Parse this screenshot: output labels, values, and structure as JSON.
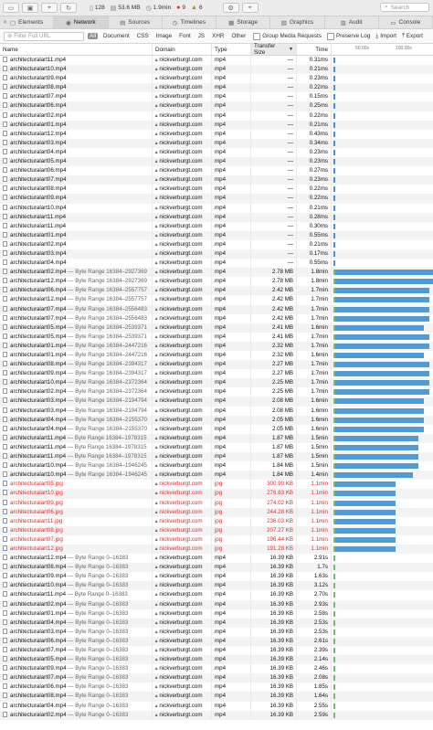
{
  "toolbar": {
    "count": "128",
    "size": "53.6 MB",
    "duration": "1.9min",
    "err": "9",
    "warn": "6",
    "search_placeholder": "Search"
  },
  "tabs": [
    {
      "label": "Elements",
      "icon": "elements-icon",
      "glyph": "▢",
      "active": false
    },
    {
      "label": "Network",
      "icon": "network-icon",
      "glyph": "◉",
      "active": true
    },
    {
      "label": "Sources",
      "icon": "sources-icon",
      "glyph": "▤",
      "active": false
    },
    {
      "label": "Timelines",
      "icon": "timelines-icon",
      "glyph": "◷",
      "active": false
    },
    {
      "label": "Storage",
      "icon": "storage-icon",
      "glyph": "▦",
      "active": false
    },
    {
      "label": "Graphics",
      "icon": "graphics-icon",
      "glyph": "▧",
      "active": false
    },
    {
      "label": "Audit",
      "icon": "audit-icon",
      "glyph": "▥",
      "active": false
    },
    {
      "label": "Console",
      "icon": "console-icon",
      "glyph": "▭",
      "active": false
    }
  ],
  "filter": {
    "placeholder": "Filter Full URL",
    "types": [
      "All",
      "Document",
      "CSS",
      "Image",
      "Font",
      "JS",
      "XHR",
      "Other"
    ],
    "group_media": "Group Media Requests",
    "preserve_log": "Preserve Log",
    "import": "Import",
    "export": "Export"
  },
  "columns": {
    "name": "Name",
    "domain": "Domain",
    "type": "Type",
    "size": "Transfer Size",
    "time": "Time",
    "tick1": "50.00s",
    "tick2": "100.00s"
  },
  "rows": [
    {
      "n": "architecturalart11.mp4",
      "r": "",
      "d": "nickverburgt.com",
      "t": "mp4",
      "s": "—",
      "tm": "0.31ms",
      "red": false,
      "bar": "s"
    },
    {
      "n": "architecturalart10.mp4",
      "r": "",
      "d": "nickverburgt.com",
      "t": "mp4",
      "s": "—",
      "tm": "0.21ms",
      "red": false,
      "bar": "s"
    },
    {
      "n": "architecturalart09.mp4",
      "r": "",
      "d": "nickverburgt.com",
      "t": "mp4",
      "s": "—",
      "tm": "0.23ms",
      "red": false,
      "bar": "s"
    },
    {
      "n": "architecturalart08.mp4",
      "r": "",
      "d": "nickverburgt.com",
      "t": "mp4",
      "s": "—",
      "tm": "0.22ms",
      "red": false,
      "bar": "s"
    },
    {
      "n": "architecturalart07.mp4",
      "r": "",
      "d": "nickverburgt.com",
      "t": "mp4",
      "s": "—",
      "tm": "0.15ms",
      "red": false,
      "bar": "s"
    },
    {
      "n": "architecturalart06.mp4",
      "r": "",
      "d": "nickverburgt.com",
      "t": "mp4",
      "s": "—",
      "tm": "0.25ms",
      "red": false,
      "bar": "s"
    },
    {
      "n": "architecturalart02.mp4",
      "r": "",
      "d": "nickverburgt.com",
      "t": "mp4",
      "s": "—",
      "tm": "0.22ms",
      "red": false,
      "bar": "s"
    },
    {
      "n": "architecturalart01.mp4",
      "r": "",
      "d": "nickverburgt.com",
      "t": "mp4",
      "s": "—",
      "tm": "0.21ms",
      "red": false,
      "bar": "s"
    },
    {
      "n": "architecturalart12.mp4",
      "r": "",
      "d": "nickverburgt.com",
      "t": "mp4",
      "s": "—",
      "tm": "0.43ms",
      "red": false,
      "bar": "s"
    },
    {
      "n": "architecturalart03.mp4",
      "r": "",
      "d": "nickverburgt.com",
      "t": "mp4",
      "s": "—",
      "tm": "0.34ms",
      "red": false,
      "bar": "s"
    },
    {
      "n": "architecturalart04.mp4",
      "r": "",
      "d": "nickverburgt.com",
      "t": "mp4",
      "s": "—",
      "tm": "0.23ms",
      "red": false,
      "bar": "s"
    },
    {
      "n": "architecturalart05.mp4",
      "r": "",
      "d": "nickverburgt.com",
      "t": "mp4",
      "s": "—",
      "tm": "0.23ms",
      "red": false,
      "bar": "s"
    },
    {
      "n": "architecturalart06.mp4",
      "r": "",
      "d": "nickverburgt.com",
      "t": "mp4",
      "s": "—",
      "tm": "0.27ms",
      "red": false,
      "bar": "s"
    },
    {
      "n": "architecturalart07.mp4",
      "r": "",
      "d": "nickverburgt.com",
      "t": "mp4",
      "s": "—",
      "tm": "0.23ms",
      "red": false,
      "bar": "s"
    },
    {
      "n": "architecturalart08.mp4",
      "r": "",
      "d": "nickverburgt.com",
      "t": "mp4",
      "s": "—",
      "tm": "0.22ms",
      "red": false,
      "bar": "s"
    },
    {
      "n": "architecturalart09.mp4",
      "r": "",
      "d": "nickverburgt.com",
      "t": "mp4",
      "s": "—",
      "tm": "0.22ms",
      "red": false,
      "bar": "s"
    },
    {
      "n": "architecturalart10.mp4",
      "r": "",
      "d": "nickverburgt.com",
      "t": "mp4",
      "s": "—",
      "tm": "0.21ms",
      "red": false,
      "bar": "s"
    },
    {
      "n": "architecturalart11.mp4",
      "r": "",
      "d": "nickverburgt.com",
      "t": "mp4",
      "s": "—",
      "tm": "0.28ms",
      "red": false,
      "bar": "s"
    },
    {
      "n": "architecturalart11.mp4",
      "r": "",
      "d": "nickverburgt.com",
      "t": "mp4",
      "s": "—",
      "tm": "0.30ms",
      "red": false,
      "bar": "s"
    },
    {
      "n": "architecturalart01.mp4",
      "r": "",
      "d": "nickverburgt.com",
      "t": "mp4",
      "s": "—",
      "tm": "0.55ms",
      "red": false,
      "bar": "s"
    },
    {
      "n": "architecturalart02.mp4",
      "r": "",
      "d": "nickverburgt.com",
      "t": "mp4",
      "s": "—",
      "tm": "0.21ms",
      "red": false,
      "bar": "s"
    },
    {
      "n": "architecturalart03.mp4",
      "r": "",
      "d": "nickverburgt.com",
      "t": "mp4",
      "s": "—",
      "tm": "0.17ms",
      "red": false,
      "bar": "s"
    },
    {
      "n": "architecturalart04.mp4",
      "r": "",
      "d": "nickverburgt.com",
      "t": "mp4",
      "s": "—",
      "tm": "0.55ms",
      "red": false,
      "bar": "s"
    },
    {
      "n": "architecturalart02.mp4",
      "r": " — Byte Range 16384–2927369",
      "d": "nickverburgt.com",
      "t": "mp4",
      "s": "2.78 MB",
      "tm": "1.8min",
      "red": false,
      "bar": "b",
      "w": 1.8
    },
    {
      "n": "architecturalart12.mp4",
      "r": " — Byte Range 16384–2927369",
      "d": "nickverburgt.com",
      "t": "mp4",
      "s": "2.78 MB",
      "tm": "1.8min",
      "red": false,
      "bar": "b",
      "w": 1.8
    },
    {
      "n": "architecturalart06.mp4",
      "r": " — Byte Range 16384–2557757",
      "d": "nickverburgt.com",
      "t": "mp4",
      "s": "2.42 MB",
      "tm": "1.7min",
      "red": false,
      "bar": "b",
      "w": 1.7
    },
    {
      "n": "architecturalart12.mp4",
      "r": " — Byte Range 16384–2557757",
      "d": "nickverburgt.com",
      "t": "mp4",
      "s": "2.42 MB",
      "tm": "1.7min",
      "red": false,
      "bar": "b",
      "w": 1.7
    },
    {
      "n": "architecturalart07.mp4",
      "r": " — Byte Range 16384–2556483",
      "d": "nickverburgt.com",
      "t": "mp4",
      "s": "2.42 MB",
      "tm": "1.7min",
      "red": false,
      "bar": "b",
      "w": 1.7
    },
    {
      "n": "architecturalart07.mp4",
      "r": " — Byte Range 16384–2556483",
      "d": "nickverburgt.com",
      "t": "mp4",
      "s": "2.42 MB",
      "tm": "1.7min",
      "red": false,
      "bar": "b",
      "w": 1.7
    },
    {
      "n": "architecturalart05.mp4",
      "r": " — Byte Range 16384–2539371",
      "d": "nickverburgt.com",
      "t": "mp4",
      "s": "2.41 MB",
      "tm": "1.6min",
      "red": false,
      "bar": "b",
      "w": 1.6
    },
    {
      "n": "architecturalart05.mp4",
      "r": " — Byte Range 16384–2539371",
      "d": "nickverburgt.com",
      "t": "mp4",
      "s": "2.41 MB",
      "tm": "1.7min",
      "red": false,
      "bar": "b",
      "w": 1.7
    },
    {
      "n": "architecturalart01.mp4",
      "r": " — Byte Range 16384–2447216",
      "d": "nickverburgt.com",
      "t": "mp4",
      "s": "2.32 MB",
      "tm": "1.7min",
      "red": false,
      "bar": "b",
      "w": 1.7
    },
    {
      "n": "architecturalart01.mp4",
      "r": " — Byte Range 16384–2447216",
      "d": "nickverburgt.com",
      "t": "mp4",
      "s": "2.32 MB",
      "tm": "1.6min",
      "red": false,
      "bar": "b",
      "w": 1.6
    },
    {
      "n": "architecturalart08.mp4",
      "r": " — Byte Range 16384–2394317",
      "d": "nickverburgt.com",
      "t": "mp4",
      "s": "2.27 MB",
      "tm": "1.7min",
      "red": false,
      "bar": "b",
      "w": 1.7
    },
    {
      "n": "architecturalart09.mp4",
      "r": " — Byte Range 16384–2394317",
      "d": "nickverburgt.com",
      "t": "mp4",
      "s": "2.27 MB",
      "tm": "1.7min",
      "red": false,
      "bar": "b",
      "w": 1.7
    },
    {
      "n": "architecturalart10.mp4",
      "r": " — Byte Range 16384–2372364",
      "d": "nickverburgt.com",
      "t": "mp4",
      "s": "2.25 MB",
      "tm": "1.7min",
      "red": false,
      "bar": "b",
      "w": 1.7
    },
    {
      "n": "architecturalart02.mp4",
      "r": " — Byte Range 16384–2372364",
      "d": "nickverburgt.com",
      "t": "mp4",
      "s": "2.25 MB",
      "tm": "1.7min",
      "red": false,
      "bar": "b",
      "w": 1.7
    },
    {
      "n": "architecturalart03.mp4",
      "r": " — Byte Range 16384–2194794",
      "d": "nickverburgt.com",
      "t": "mp4",
      "s": "2.08 MB",
      "tm": "1.6min",
      "red": false,
      "bar": "b",
      "w": 1.6
    },
    {
      "n": "architecturalart03.mp4",
      "r": " — Byte Range 16384–2194794",
      "d": "nickverburgt.com",
      "t": "mp4",
      "s": "2.08 MB",
      "tm": "1.6min",
      "red": false,
      "bar": "b",
      "w": 1.6
    },
    {
      "n": "architecturalart04.mp4",
      "r": " — Byte Range 16384–2155370",
      "d": "nickverburgt.com",
      "t": "mp4",
      "s": "2.05 MB",
      "tm": "1.6min",
      "red": false,
      "bar": "b",
      "w": 1.6
    },
    {
      "n": "architecturalart04.mp4",
      "r": " — Byte Range 16384–2155370",
      "d": "nickverburgt.com",
      "t": "mp4",
      "s": "2.05 MB",
      "tm": "1.6min",
      "red": false,
      "bar": "b",
      "w": 1.6
    },
    {
      "n": "architecturalart11.mp4",
      "r": " — Byte Range 16384–1978315",
      "d": "nickverburgt.com",
      "t": "mp4",
      "s": "1.87 MB",
      "tm": "1.5min",
      "red": false,
      "bar": "b",
      "w": 1.5
    },
    {
      "n": "architecturalart11.mp4",
      "r": " — Byte Range 16384–1978315",
      "d": "nickverburgt.com",
      "t": "mp4",
      "s": "1.87 MB",
      "tm": "1.5min",
      "red": false,
      "bar": "b",
      "w": 1.5
    },
    {
      "n": "architecturalart11.mp4",
      "r": " — Byte Range 16384–1978315",
      "d": "nickverburgt.com",
      "t": "mp4",
      "s": "1.87 MB",
      "tm": "1.5min",
      "red": false,
      "bar": "b",
      "w": 1.5
    },
    {
      "n": "architecturalart10.mp4",
      "r": " — Byte Range 16384–1946245",
      "d": "nickverburgt.com",
      "t": "mp4",
      "s": "1.84 MB",
      "tm": "1.5min",
      "red": false,
      "bar": "b",
      "w": 1.5
    },
    {
      "n": "architecturalart10.mp4",
      "r": " — Byte Range 16384–1946245",
      "d": "nickverburgt.com",
      "t": "mp4",
      "s": "1.84 MB",
      "tm": "1.4min",
      "red": false,
      "bar": "b",
      "w": 1.4
    },
    {
      "n": "architecturalart05.jpg",
      "r": "",
      "d": "nickverburgt.com",
      "t": "jpg",
      "s": "300.90 KB",
      "tm": "1.1min",
      "red": true,
      "bar": "b",
      "w": 1.1,
      "img": true
    },
    {
      "n": "architecturalart10.jpg",
      "r": "",
      "d": "nickverburgt.com",
      "t": "jpg",
      "s": "276.83 KB",
      "tm": "1.1min",
      "red": true,
      "bar": "b",
      "w": 1.1,
      "img": true
    },
    {
      "n": "architecturalart09.jpg",
      "r": "",
      "d": "nickverburgt.com",
      "t": "jpg",
      "s": "274.02 KB",
      "tm": "1.1min",
      "red": true,
      "bar": "b",
      "w": 1.1,
      "img": true
    },
    {
      "n": "architecturalart06.jpg",
      "r": "",
      "d": "nickverburgt.com",
      "t": "jpg",
      "s": "244.28 KB",
      "tm": "1.1min",
      "red": true,
      "bar": "b",
      "w": 1.1,
      "img": true
    },
    {
      "n": "architecturalart11.jpg",
      "r": "",
      "d": "nickverburgt.com",
      "t": "jpg",
      "s": "236.03 KB",
      "tm": "1.1min",
      "red": true,
      "bar": "b",
      "w": 1.1,
      "img": true
    },
    {
      "n": "architecturalart08.jpg",
      "r": "",
      "d": "nickverburgt.com",
      "t": "jpg",
      "s": "207.27 KB",
      "tm": "1.1min",
      "red": true,
      "bar": "b",
      "w": 1.1,
      "img": true
    },
    {
      "n": "architecturalart07.jpg",
      "r": "",
      "d": "nickverburgt.com",
      "t": "jpg",
      "s": "196.44 KB",
      "tm": "1.1min",
      "red": true,
      "bar": "b",
      "w": 1.1,
      "img": true
    },
    {
      "n": "architecturalart12.jpg",
      "r": "",
      "d": "nickverburgt.com",
      "t": "jpg",
      "s": "191.28 KB",
      "tm": "1.1min",
      "red": true,
      "bar": "b",
      "w": 1.1,
      "img": true
    },
    {
      "n": "architecturalart12.mp4",
      "r": " — Byte Range 0–16383",
      "d": "nickverburgt.com",
      "t": "mp4",
      "s": "16.39 KB",
      "tm": "2.91s",
      "red": false,
      "bar": "g"
    },
    {
      "n": "architecturalart08.mp4",
      "r": " — Byte Range 0–16383",
      "d": "nickverburgt.com",
      "t": "mp4",
      "s": "16.39 KB",
      "tm": "1.7s",
      "red": false,
      "bar": "g"
    },
    {
      "n": "architecturalart09.mp4",
      "r": " — Byte Range 0–16383",
      "d": "nickverburgt.com",
      "t": "mp4",
      "s": "16.39 KB",
      "tm": "1.63s",
      "red": false,
      "bar": "g"
    },
    {
      "n": "architecturalart10.mp4",
      "r": " — Byte Range 0–16383",
      "d": "nickverburgt.com",
      "t": "mp4",
      "s": "16.39 KB",
      "tm": "3.12s",
      "red": false,
      "bar": "g"
    },
    {
      "n": "architecturalart11.mp4",
      "r": " — Byte Range 0–16383",
      "d": "nickverburgt.com",
      "t": "mp4",
      "s": "16.39 KB",
      "tm": "2.70s",
      "red": false,
      "bar": "g"
    },
    {
      "n": "architecturalart02.mp4",
      "r": " — Byte Range 0–16383",
      "d": "nickverburgt.com",
      "t": "mp4",
      "s": "16.39 KB",
      "tm": "2.93s",
      "red": false,
      "bar": "g"
    },
    {
      "n": "architecturalart01.mp4",
      "r": " — Byte Range 0–16383",
      "d": "nickverburgt.com",
      "t": "mp4",
      "s": "16.39 KB",
      "tm": "2.58s",
      "red": false,
      "bar": "g"
    },
    {
      "n": "architecturalart04.mp4",
      "r": " — Byte Range 0–16383",
      "d": "nickverburgt.com",
      "t": "mp4",
      "s": "16.39 KB",
      "tm": "2.53s",
      "red": false,
      "bar": "g"
    },
    {
      "n": "architecturalart03.mp4",
      "r": " — Byte Range 0–16383",
      "d": "nickverburgt.com",
      "t": "mp4",
      "s": "16.39 KB",
      "tm": "2.53s",
      "red": false,
      "bar": "g"
    },
    {
      "n": "architecturalart06.mp4",
      "r": " — Byte Range 0–16383",
      "d": "nickverburgt.com",
      "t": "mp4",
      "s": "16.39 KB",
      "tm": "2.61s",
      "red": false,
      "bar": "g"
    },
    {
      "n": "architecturalart07.mp4",
      "r": " — Byte Range 0–16383",
      "d": "nickverburgt.com",
      "t": "mp4",
      "s": "16.39 KB",
      "tm": "2.39s",
      "red": false,
      "bar": "g"
    },
    {
      "n": "architecturalart05.mp4",
      "r": " — Byte Range 0–16383",
      "d": "nickverburgt.com",
      "t": "mp4",
      "s": "16.39 KB",
      "tm": "2.14s",
      "red": false,
      "bar": "g"
    },
    {
      "n": "architecturalart09.mp4",
      "r": " — Byte Range 0–16383",
      "d": "nickverburgt.com",
      "t": "mp4",
      "s": "16.39 KB",
      "tm": "2.46s",
      "red": false,
      "bar": "g"
    },
    {
      "n": "architecturalart07.mp4",
      "r": " — Byte Range 0–16383",
      "d": "nickverburgt.com",
      "t": "mp4",
      "s": "16.39 KB",
      "tm": "2.08s",
      "red": false,
      "bar": "g"
    },
    {
      "n": "architecturalart06.mp4",
      "r": " — Byte Range 0–16383",
      "d": "nickverburgt.com",
      "t": "mp4",
      "s": "16.39 KB",
      "tm": "1.85s",
      "red": false,
      "bar": "g"
    },
    {
      "n": "architecturalart08.mp4",
      "r": " — Byte Range 0–16383",
      "d": "nickverburgt.com",
      "t": "mp4",
      "s": "16.39 KB",
      "tm": "1.64s",
      "red": false,
      "bar": "g"
    },
    {
      "n": "architecturalart04.mp4",
      "r": " — Byte Range 0–16383",
      "d": "nickverburgt.com",
      "t": "mp4",
      "s": "16.39 KB",
      "tm": "2.55s",
      "red": false,
      "bar": "g"
    },
    {
      "n": "architecturalart02.mp4",
      "r": " — Byte Range 0–16383",
      "d": "nickverburgt.com",
      "t": "mp4",
      "s": "16.39 KB",
      "tm": "2.59s",
      "red": false,
      "bar": "g"
    }
  ]
}
